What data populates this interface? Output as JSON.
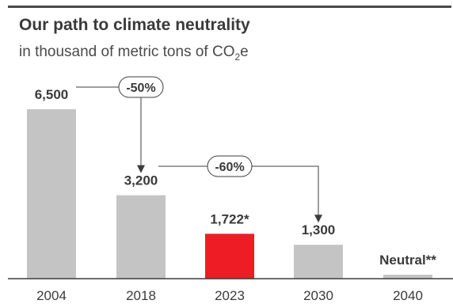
{
  "header": {
    "title": "Our path to climate neutrality",
    "subtitle_main": "in thousand of metric tons of CO",
    "subtitle_sub": "2",
    "subtitle_end": "e"
  },
  "colors": {
    "bar_default": "#c4c4c4",
    "bar_highlight": "#ee1c25",
    "axis": "#3c3c3c",
    "text": "#3a3a3a"
  },
  "chart_data": {
    "type": "bar",
    "title": "Our path to climate neutrality",
    "subtitle": "in thousand of metric tons of CO2e",
    "categories": [
      "2004",
      "2018",
      "2023",
      "2030",
      "2040"
    ],
    "values": [
      6500,
      3200,
      1722,
      1300,
      0
    ],
    "value_labels": [
      "6,500",
      "3,200",
      "1,722*",
      "1,300",
      "Neutral**"
    ],
    "highlight_index": 2,
    "ylim": [
      0,
      6500
    ],
    "grid": false,
    "annotations": [
      {
        "text": "-50%",
        "from": "2004",
        "to": "2018"
      },
      {
        "text": "-60%",
        "from": "2018",
        "to": "2030"
      }
    ]
  }
}
